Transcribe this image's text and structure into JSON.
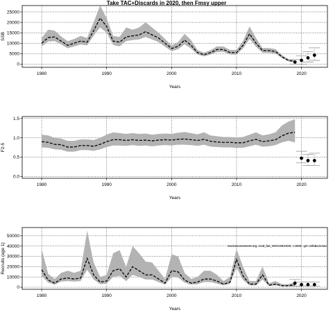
{
  "title": "Take TAC+Discards in 2020, then Fmsy upper",
  "colors": {
    "band": "#b3b3b3",
    "line": "#000000",
    "forecast_band": "#d9d9d9",
    "grid": "#000000"
  },
  "chart_data": [
    {
      "type": "line",
      "name": "ssb",
      "xlabel": "Years",
      "ylabel": "SSB",
      "xlim": [
        1977,
        2024
      ],
      "ylim": [
        -1500,
        28000
      ],
      "xticks": [
        1980,
        1990,
        2000,
        2010,
        2020
      ],
      "yticks": [
        0,
        5000,
        10000,
        15000,
        20000,
        25000
      ],
      "x": [
        1980,
        1981,
        1982,
        1983,
        1984,
        1985,
        1986,
        1987,
        1988,
        1989,
        1990,
        1991,
        1992,
        1993,
        1994,
        1995,
        1996,
        1997,
        1998,
        1999,
        2000,
        2001,
        2002,
        2003,
        2004,
        2005,
        2006,
        2007,
        2008,
        2009,
        2010,
        2011,
        2012,
        2013,
        2014,
        2015,
        2016,
        2017,
        2018,
        2019
      ],
      "median": [
        10000,
        12700,
        13000,
        11000,
        9000,
        10000,
        11000,
        10500,
        16000,
        22000,
        18000,
        11000,
        10500,
        13000,
        13500,
        14000,
        15500,
        14000,
        12500,
        10000,
        7500,
        8500,
        11500,
        9000,
        5500,
        4500,
        5500,
        7000,
        7000,
        5500,
        5500,
        9000,
        14500,
        10000,
        6500,
        6500,
        6000,
        3500,
        1800,
        1200
      ],
      "low": [
        8500,
        10800,
        11000,
        9400,
        7600,
        8500,
        9400,
        9000,
        13600,
        17500,
        15000,
        9200,
        8500,
        11000,
        11500,
        11800,
        13000,
        11800,
        10500,
        8300,
        6200,
        7100,
        9500,
        7500,
        4600,
        3700,
        4600,
        5800,
        5900,
        4600,
        4500,
        7500,
        12000,
        8300,
        5400,
        5400,
        5000,
        2900,
        1300,
        800
      ],
      "high": [
        12500,
        16500,
        16000,
        13200,
        11000,
        12000,
        13500,
        12500,
        20000,
        28000,
        22000,
        13500,
        13000,
        17500,
        16500,
        17500,
        20000,
        17500,
        15000,
        12000,
        9000,
        10500,
        14500,
        11500,
        6700,
        5500,
        6700,
        8500,
        8400,
        6800,
        6800,
        11000,
        18000,
        12500,
        7700,
        7700,
        7200,
        4300,
        2400,
        1800
      ],
      "forecast_x": [
        2019,
        2020,
        2021,
        2022
      ],
      "forecast_median": [
        1000,
        1800,
        3000,
        4300
      ],
      "forecast_low": [
        0,
        0,
        1000,
        1800
      ],
      "forecast_high": [
        2200,
        4000,
        6000,
        7800
      ]
    },
    {
      "type": "line",
      "name": "fishing-mortality",
      "xlabel": "Years",
      "ylabel": "F2-5",
      "xlim": [
        1977,
        2024
      ],
      "ylim": [
        -0.05,
        1.55
      ],
      "xticks": [
        1980,
        1990,
        2000,
        2010,
        2020
      ],
      "yticks": [
        0.0,
        0.5,
        1.0,
        1.5
      ],
      "ytick_labels": [
        "0.0",
        "0.5",
        "1.0",
        "1.5"
      ],
      "x": [
        1980,
        1981,
        1982,
        1983,
        1984,
        1985,
        1986,
        1987,
        1988,
        1989,
        1990,
        1991,
        1992,
        1993,
        1994,
        1995,
        1996,
        1997,
        1998,
        1999,
        2000,
        2001,
        2002,
        2003,
        2004,
        2005,
        2006,
        2007,
        2008,
        2009,
        2010,
        2011,
        2012,
        2013,
        2014,
        2015,
        2016,
        2017,
        2018,
        2019
      ],
      "median": [
        0.9,
        0.88,
        0.83,
        0.82,
        0.76,
        0.76,
        0.8,
        0.8,
        0.78,
        0.83,
        0.9,
        0.95,
        0.95,
        0.93,
        0.95,
        0.93,
        0.94,
        0.92,
        0.94,
        0.95,
        0.94,
        0.96,
        0.97,
        0.95,
        0.93,
        0.96,
        0.91,
        0.89,
        0.88,
        0.88,
        0.87,
        0.87,
        0.92,
        0.96,
        0.9,
        0.92,
        0.95,
        1.05,
        1.12,
        1.14
      ],
      "low": [
        0.75,
        0.74,
        0.7,
        0.69,
        0.64,
        0.64,
        0.68,
        0.68,
        0.66,
        0.7,
        0.76,
        0.8,
        0.8,
        0.79,
        0.81,
        0.79,
        0.8,
        0.78,
        0.8,
        0.81,
        0.8,
        0.82,
        0.82,
        0.81,
        0.79,
        0.82,
        0.77,
        0.76,
        0.75,
        0.75,
        0.74,
        0.74,
        0.78,
        0.82,
        0.77,
        0.78,
        0.81,
        0.88,
        0.92,
        0.88
      ],
      "high": [
        1.08,
        1.06,
        1.0,
        0.98,
        0.92,
        0.92,
        0.96,
        0.96,
        0.94,
        1.0,
        1.08,
        1.14,
        1.12,
        1.1,
        1.12,
        1.1,
        1.11,
        1.08,
        1.1,
        1.11,
        1.1,
        1.13,
        1.15,
        1.12,
        1.09,
        1.14,
        1.06,
        1.04,
        1.02,
        1.02,
        1.01,
        1.02,
        1.08,
        1.14,
        1.06,
        1.09,
        1.14,
        1.32,
        1.42,
        1.48
      ],
      "forecast_x": [
        2020,
        2021,
        2022
      ],
      "forecast_median": [
        0.47,
        0.41,
        0.41
      ],
      "forecast_low": [
        0.35,
        0.28,
        0.28
      ],
      "forecast_high": [
        0.65,
        0.57,
        0.6
      ]
    },
    {
      "type": "line",
      "name": "recruitment",
      "xlabel": "Years",
      "ylabel": "Recruits (age 1)",
      "xlim": [
        1977,
        2024
      ],
      "ylim": [
        -2000,
        58000
      ],
      "xticks": [
        1980,
        1990,
        2000,
        2010,
        2020
      ],
      "yticks": [
        0,
        10000,
        20000,
        30000,
        40000,
        50000
      ],
      "x": [
        1980,
        1981,
        1982,
        1983,
        1984,
        1985,
        1986,
        1987,
        1988,
        1989,
        1990,
        1991,
        1992,
        1993,
        1994,
        1995,
        1996,
        1997,
        1998,
        1999,
        2000,
        2001,
        2002,
        2003,
        2004,
        2005,
        2006,
        2007,
        2008,
        2009,
        2010,
        2011,
        2012,
        2013,
        2014,
        2015,
        2016,
        2017,
        2018,
        2019
      ],
      "median": [
        17000,
        7000,
        4000,
        8000,
        9000,
        8000,
        9000,
        28000,
        12000,
        5000,
        6000,
        16000,
        18000,
        10000,
        20000,
        16000,
        12000,
        12000,
        8000,
        4000,
        16000,
        15000,
        7000,
        4000,
        5000,
        8000,
        8000,
        6000,
        3000,
        5000,
        27000,
        11000,
        3000,
        3000,
        12000,
        2000,
        3000,
        1500,
        1500,
        2500
      ],
      "low": [
        11000,
        4500,
        2500,
        5500,
        6000,
        5500,
        6000,
        17000,
        7500,
        3000,
        3500,
        10000,
        11000,
        6000,
        12000,
        10000,
        7500,
        7500,
        5000,
        2500,
        10000,
        9500,
        4500,
        2500,
        3000,
        5000,
        5000,
        3500,
        1800,
        3200,
        19000,
        7000,
        1800,
        1800,
        7500,
        1200,
        1800,
        800,
        800,
        1000
      ],
      "high": [
        37000,
        13000,
        8000,
        14000,
        16000,
        14000,
        16000,
        55000,
        24000,
        10000,
        12000,
        33000,
        36000,
        20000,
        40000,
        33000,
        25000,
        24000,
        16000,
        8000,
        32000,
        30000,
        14000,
        8000,
        10000,
        16000,
        16000,
        12000,
        6000,
        10000,
        37000,
        20000,
        6000,
        6000,
        20000,
        4000,
        6000,
        3000,
        3000,
        5000
      ],
      "forecast_x": [
        2019,
        2020,
        2021,
        2022
      ],
      "forecast_median": [
        4000,
        2500,
        2500,
        2500
      ],
      "forecast_low": [
        1000,
        1200,
        1200,
        1200
      ],
      "forecast_high": [
        7500,
        5000,
        5000,
        5000
      ],
      "annotation": "stockassessment.org, Cod_faz_WGCSE2020, r.1596 , git: c2fabc2e4ae"
    }
  ]
}
